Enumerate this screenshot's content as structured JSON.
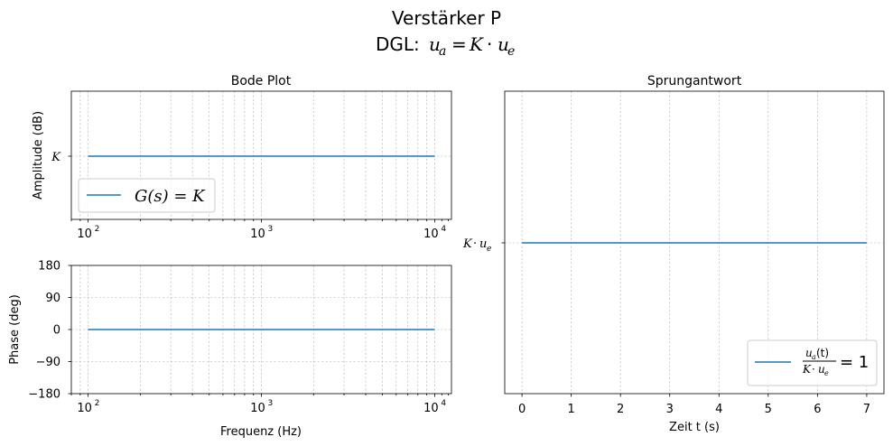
{
  "figure": {
    "title": "Verstärker P",
    "subtitle_prefix": "DGL: ",
    "subtitle_equation": "u_a = K · u_e"
  },
  "colors": {
    "series": "#1f77b4",
    "grid": "#b0b0b0",
    "axis": "#000000"
  },
  "chart_data": [
    {
      "id": "amplitude",
      "type": "line",
      "title": "Bode Plot",
      "ylabel": "Amplitude (dB)",
      "xscale": "log",
      "xlim": [
        80,
        12500
      ],
      "x_ticks": [
        {
          "value": 100,
          "exp": "2"
        },
        {
          "value": 1000,
          "exp": "3"
        },
        {
          "value": 10000,
          "exp": "4"
        }
      ],
      "x_tick_base": "10",
      "y_ticks": [
        {
          "value": "K",
          "label": "K"
        }
      ],
      "grid": true,
      "legend": {
        "placement": "lower left",
        "label": "G(s) = K"
      },
      "series": [
        {
          "x": [
            100,
            10000
          ],
          "y": [
            "K",
            "K"
          ]
        }
      ]
    },
    {
      "id": "phase",
      "type": "line",
      "ylabel": "Phase (deg)",
      "xlabel": "Frequenz (Hz)",
      "xscale": "log",
      "xlim": [
        80,
        12500
      ],
      "ylim": [
        -180,
        180
      ],
      "x_ticks": [
        {
          "value": 100,
          "exp": "2"
        },
        {
          "value": 1000,
          "exp": "3"
        },
        {
          "value": 10000,
          "exp": "4"
        }
      ],
      "x_tick_base": "10",
      "y_ticks": [
        {
          "value": 180,
          "label": "180"
        },
        {
          "value": 90,
          "label": "90"
        },
        {
          "value": 0,
          "label": "0"
        },
        {
          "value": -90,
          "label": "−90"
        },
        {
          "value": -180,
          "label": "−180"
        }
      ],
      "grid": true,
      "series": [
        {
          "x": [
            100,
            10000
          ],
          "y": [
            0,
            0
          ]
        }
      ]
    },
    {
      "id": "step",
      "type": "line",
      "title": "Sprungantwort",
      "xlabel": "Zeit t (s)",
      "xlim": [
        -0.35,
        7.35
      ],
      "x_ticks": [
        {
          "value": 0,
          "label": "0"
        },
        {
          "value": 1,
          "label": "1"
        },
        {
          "value": 2,
          "label": "2"
        },
        {
          "value": 3,
          "label": "3"
        },
        {
          "value": 4,
          "label": "4"
        },
        {
          "value": 5,
          "label": "5"
        },
        {
          "value": 6,
          "label": "6"
        },
        {
          "value": 7,
          "label": "7"
        }
      ],
      "y_ticks": [
        {
          "value": "K·u_e",
          "label": "K · u_e"
        }
      ],
      "grid": true,
      "legend": {
        "placement": "lower right",
        "label": "u_a(t) / (K · u_e) = 1"
      },
      "series": [
        {
          "x": [
            0,
            7
          ],
          "y": [
            "K·u_e",
            "K·u_e"
          ]
        }
      ]
    }
  ],
  "text": {
    "amp_title": "Bode Plot",
    "amp_ylabel": "Amplitude (dB)",
    "amp_ytick": "K",
    "amp_legend_lhs": "G(s) = K",
    "phase_ylabel": "Phase (deg)",
    "phase_xlabel": "Frequenz (Hz)",
    "step_title": "Sprungantwort",
    "step_xlabel": "Zeit t (s)",
    "step_ytick_K": "K",
    "step_ytick_dot": "·",
    "step_ytick_u": "u",
    "step_ytick_sub": "e",
    "legend_num_u": "u",
    "legend_num_sub": "a",
    "legend_num_rest": "(t)",
    "legend_den_K": "K",
    "legend_den_dot": "·",
    "legend_den_u": "u",
    "legend_den_sub": "e",
    "legend_eq": "= 1",
    "log_base": "10",
    "exp2": "2",
    "exp3": "3",
    "exp4": "4"
  }
}
